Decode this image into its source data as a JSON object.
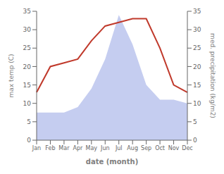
{
  "chart_data": {
    "type": "line",
    "xlabel": "date (month)",
    "ylabel": "max temp (C)",
    "y2label": "med. precipitation (kg/m2)",
    "categories": [
      "Jan",
      "Feb",
      "Mar",
      "Apr",
      "May",
      "Jun",
      "Jul",
      "Aug",
      "Sep",
      "Oct",
      "Nov",
      "Dec"
    ],
    "series": [
      {
        "type": "line",
        "color": "#c0392b",
        "values": [
          13,
          20,
          21,
          22,
          27,
          31,
          32,
          33,
          33,
          25,
          15,
          13
        ]
      },
      {
        "type": "area",
        "axis": "y2",
        "color": "#c5cdf0",
        "values": [
          7.5,
          7.5,
          7.5,
          9.0,
          14.0,
          22.0,
          34.0,
          26.0,
          15.0,
          11.0,
          11.0,
          10.0
        ]
      }
    ],
    "ylim": [
      0,
      35
    ],
    "yticks": [
      0,
      5,
      10,
      15,
      20,
      25,
      30,
      35
    ],
    "y2lim": [
      0,
      35
    ],
    "y2ticks": [
      0,
      5,
      10,
      15,
      20,
      25,
      30,
      35
    ],
    "grid": false
  }
}
